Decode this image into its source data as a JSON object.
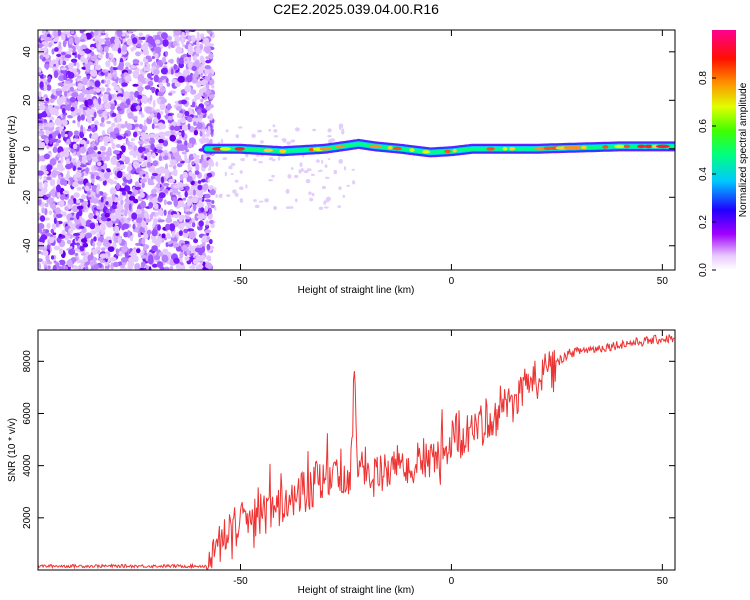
{
  "figure": {
    "title": "C2E2.2025.039.04.00.R16"
  },
  "chart_data": [
    {
      "type": "heatmap",
      "xlabel": "Height of straight line (km)",
      "ylabel": "Frequency (Hz)",
      "xlim": [
        -98,
        53
      ],
      "ylim": [
        -50,
        49
      ],
      "x_ticks": [
        -50,
        0,
        50
      ],
      "y_ticks": [
        -40,
        -20,
        0,
        20,
        40
      ],
      "colorbar": {
        "label": "Normalized spectral amplitude",
        "range": [
          0,
          1
        ],
        "ticks": [
          "0.0",
          "0.2",
          "0.4",
          "0.6",
          "0.8"
        ],
        "colors": [
          "#ffffff",
          "#a000ff",
          "#0000ff",
          "#00ffff",
          "#00ff00",
          "#ffff00",
          "#ff8000",
          "#ff0000",
          "#ff0080"
        ]
      },
      "regions": [
        {
          "x_range": [
            -98,
            -58
          ],
          "freq_range": [
            -50,
            49
          ],
          "level": "low (noise)"
        },
        {
          "x_range": [
            -58,
            53
          ],
          "freq_center": 0,
          "level": "high (narrow band)"
        }
      ],
      "ridge": {
        "x": [
          -58,
          -50,
          -40,
          -30,
          -22,
          -18,
          -12,
          -5,
          0,
          5,
          10,
          20,
          30,
          40,
          53
        ],
        "freq": [
          0,
          0,
          -1,
          0,
          2,
          1,
          0,
          -1.5,
          -1,
          0,
          0,
          0,
          0.5,
          1,
          1
        ]
      }
    },
    {
      "type": "line",
      "xlabel": "Height of straight line (km)",
      "ylabel": "SNR (10 * v/v)",
      "xlim": [
        -98,
        53
      ],
      "ylim": [
        0,
        9200
      ],
      "x_ticks": [
        -50,
        0,
        50
      ],
      "y_ticks": [
        2000,
        4000,
        6000,
        8000
      ],
      "color": "#ee3333",
      "x": [
        -98,
        -90,
        -80,
        -70,
        -60,
        -58,
        -56,
        -54,
        -52,
        -50,
        -48,
        -46,
        -44,
        -42,
        -40,
        -38,
        -36,
        -34,
        -32,
        -30,
        -28,
        -26,
        -24,
        -23,
        -22,
        -20,
        -18,
        -16,
        -14,
        -12,
        -10,
        -8,
        -6,
        -4,
        -2,
        0,
        2,
        4,
        6,
        8,
        10,
        12,
        14,
        16,
        18,
        20,
        22,
        24,
        26,
        28,
        30,
        35,
        40,
        45,
        50,
        53
      ],
      "y": [
        150,
        150,
        150,
        150,
        150,
        150,
        600,
        1400,
        1300,
        1800,
        1500,
        2000,
        2200,
        2300,
        2400,
        2900,
        3100,
        2800,
        3500,
        3300,
        3700,
        3500,
        3600,
        7500,
        3400,
        4100,
        3600,
        3800,
        3900,
        4300,
        3600,
        4300,
        4300,
        4200,
        4500,
        5000,
        5000,
        5100,
        5600,
        5800,
        5700,
        6300,
        6200,
        6600,
        7500,
        7400,
        7600,
        7700,
        8100,
        8300,
        8400,
        8500,
        8650,
        8750,
        8850,
        8900
      ]
    }
  ]
}
